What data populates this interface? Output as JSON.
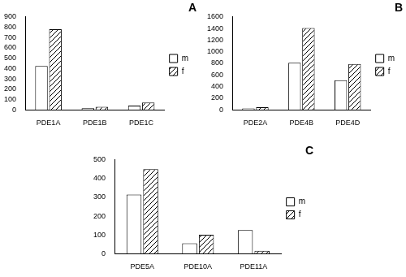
{
  "chart_data": [
    {
      "type": "bar",
      "title": "A",
      "categories": [
        "PDE1A",
        "PDE1B",
        "PDE1C"
      ],
      "series": [
        {
          "name": "m",
          "color": "#ffffff",
          "marker": "solid",
          "values": [
            425,
            15,
            40
          ]
        },
        {
          "name": "f",
          "color": "#000000",
          "marker": "hatch",
          "values": [
            780,
            30,
            70
          ]
        }
      ],
      "ylim": [
        0,
        900
      ],
      "yticks": [
        0,
        100,
        200,
        300,
        400,
        500,
        600,
        700,
        800,
        900
      ],
      "grid": false,
      "legend": "right"
    },
    {
      "type": "bar",
      "title": "B",
      "categories": [
        "PDE2A",
        "PDE4B",
        "PDE4D"
      ],
      "series": [
        {
          "name": "m",
          "color": "#ffffff",
          "marker": "solid",
          "values": [
            25,
            810,
            510
          ]
        },
        {
          "name": "f",
          "color": "#000000",
          "marker": "hatch",
          "values": [
            45,
            1410,
            790
          ]
        }
      ],
      "ylim": [
        0,
        1600
      ],
      "yticks": [
        0,
        200,
        400,
        600,
        800,
        1000,
        1200,
        1400,
        1600
      ],
      "grid": false,
      "legend": "right"
    },
    {
      "type": "bar",
      "title": "C",
      "categories": [
        "PDE5A",
        "PDE10A",
        "PDE11A"
      ],
      "series": [
        {
          "name": "m",
          "color": "#ffffff",
          "marker": "solid",
          "values": [
            315,
            55,
            125
          ]
        },
        {
          "name": "f",
          "color": "#000000",
          "marker": "hatch",
          "values": [
            450,
            100,
            15
          ]
        }
      ],
      "ylim": [
        0,
        500
      ],
      "yticks": [
        0,
        100,
        200,
        300,
        400,
        500
      ],
      "grid": false,
      "legend": "right"
    }
  ]
}
